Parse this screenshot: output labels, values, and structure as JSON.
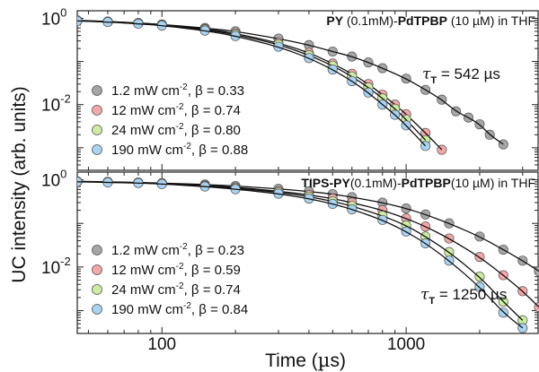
{
  "chart_data": [
    {
      "type": "scatter",
      "panel": "top",
      "title_parts": [
        {
          "text": "PY",
          "bold": true
        },
        {
          "text": " (0.1mM)-",
          "bold": false
        },
        {
          "text": "PdTPBP",
          "bold": true
        },
        {
          "text": " (10 µM) in THF",
          "bold": false
        }
      ],
      "tau_label": {
        "symbol": "τ",
        "sub": "T",
        "text": " = 542 µs"
      },
      "x_scale": "log",
      "y_scale": "log",
      "xlim": [
        45,
        3500
      ],
      "ylim": [
        0.0003,
        1.5
      ],
      "y_tick_labels": [
        {
          "value": 1,
          "base": "10",
          "exp": "0"
        },
        {
          "value": 0.01,
          "base": "10",
          "exp": "-2"
        }
      ],
      "series": [
        {
          "label_power": "1.2 mW cm",
          "label_sup": "-2",
          "label_beta": ",  β = 0.33",
          "beta": 0.33,
          "color": "#a6a6a6",
          "points": [
            [
              45,
              0.9
            ],
            [
              60,
              0.85
            ],
            [
              80,
              0.78
            ],
            [
              100,
              0.72
            ],
            [
              150,
              0.6
            ],
            [
              200,
              0.5
            ],
            [
              300,
              0.34
            ],
            [
              400,
              0.24
            ],
            [
              500,
              0.17
            ],
            [
              600,
              0.13
            ],
            [
              700,
              0.095
            ],
            [
              800,
              0.07
            ],
            [
              1000,
              0.04
            ],
            [
              1200,
              0.022
            ],
            [
              1400,
              0.013
            ],
            [
              1600,
              0.007
            ],
            [
              1800,
              0.005
            ],
            [
              2000,
              0.0035
            ],
            [
              2200,
              0.002
            ],
            [
              2500,
              0.0012
            ]
          ]
        },
        {
          "label_power": "12 mW cm",
          "label_sup": "-2",
          "label_beta": ",  β = 0.74",
          "beta": 0.74,
          "color": "#f4a8a8",
          "points": [
            [
              45,
              0.88
            ],
            [
              60,
              0.84
            ],
            [
              80,
              0.78
            ],
            [
              100,
              0.72
            ],
            [
              150,
              0.57
            ],
            [
              200,
              0.45
            ],
            [
              300,
              0.27
            ],
            [
              400,
              0.16
            ],
            [
              500,
              0.09
            ],
            [
              600,
              0.052
            ],
            [
              700,
              0.03
            ],
            [
              800,
              0.017
            ],
            [
              900,
              0.01
            ],
            [
              1000,
              0.006
            ],
            [
              1200,
              0.0022
            ],
            [
              1400,
              0.0009
            ]
          ]
        },
        {
          "label_power": "24 mW cm",
          "label_sup": "-2",
          "label_beta": ",  β = 0.80",
          "beta": 0.8,
          "color": "#cdeea0",
          "points": [
            [
              45,
              0.88
            ],
            [
              60,
              0.83
            ],
            [
              80,
              0.76
            ],
            [
              100,
              0.7
            ],
            [
              150,
              0.55
            ],
            [
              200,
              0.42
            ],
            [
              300,
              0.25
            ],
            [
              400,
              0.14
            ],
            [
              500,
              0.08
            ],
            [
              600,
              0.045
            ],
            [
              700,
              0.025
            ],
            [
              800,
              0.014
            ],
            [
              900,
              0.008
            ],
            [
              1000,
              0.0045
            ],
            [
              1200,
              0.0015
            ]
          ]
        },
        {
          "label_power": "190 mW cm",
          "label_sup": "-2",
          "label_beta": ", β = 0.88",
          "beta": 0.88,
          "color": "#a8d4f2",
          "points": [
            [
              45,
              0.87
            ],
            [
              60,
              0.82
            ],
            [
              80,
              0.75
            ],
            [
              100,
              0.68
            ],
            [
              150,
              0.52
            ],
            [
              200,
              0.39
            ],
            [
              300,
              0.22
            ],
            [
              400,
              0.12
            ],
            [
              500,
              0.065
            ],
            [
              600,
              0.035
            ],
            [
              700,
              0.019
            ],
            [
              800,
              0.01
            ],
            [
              900,
              0.0058
            ],
            [
              1000,
              0.0033
            ],
            [
              1200,
              0.0011
            ]
          ]
        }
      ]
    },
    {
      "type": "scatter",
      "panel": "bottom",
      "title_parts": [
        {
          "text": "TIPS-PY",
          "bold": true
        },
        {
          "text": "(0.1mM)-",
          "bold": false
        },
        {
          "text": "PdTPBP",
          "bold": true
        },
        {
          "text": "(10 µM) in THF",
          "bold": false
        }
      ],
      "tau_label": {
        "symbol": "τ",
        "sub": "T",
        "text": " = 1250 µs"
      },
      "x_scale": "log",
      "y_scale": "log",
      "xlim": [
        45,
        3500
      ],
      "ylim": [
        0.0003,
        1.5
      ],
      "y_tick_labels": [
        {
          "value": 1,
          "base": "10",
          "exp": "0"
        },
        {
          "value": 0.01,
          "base": "10",
          "exp": "-2"
        }
      ],
      "series": [
        {
          "label_power": "1.2 mW cm",
          "label_sup": "-2",
          "label_beta": ",  β = 0.23",
          "beta": 0.23,
          "color": "#a6a6a6",
          "points": [
            [
              45,
              0.92
            ],
            [
              60,
              0.9
            ],
            [
              80,
              0.87
            ],
            [
              100,
              0.84
            ],
            [
              150,
              0.78
            ],
            [
              200,
              0.72
            ],
            [
              300,
              0.62
            ],
            [
              400,
              0.54
            ],
            [
              500,
              0.47
            ],
            [
              600,
              0.4
            ],
            [
              800,
              0.3
            ],
            [
              1000,
              0.22
            ],
            [
              1200,
              0.16
            ],
            [
              1500,
              0.1
            ],
            [
              2000,
              0.05
            ],
            [
              2500,
              0.025
            ],
            [
              3000,
              0.014
            ],
            [
              3500,
              0.008
            ]
          ]
        },
        {
          "label_power": "12 mW  cm",
          "label_sup": "-2",
          "label_beta": ",  β = 0.59",
          "beta": 0.59,
          "color": "#f4a8a8",
          "points": [
            [
              45,
              0.91
            ],
            [
              60,
              0.89
            ],
            [
              80,
              0.86
            ],
            [
              100,
              0.82
            ],
            [
              150,
              0.74
            ],
            [
              200,
              0.67
            ],
            [
              300,
              0.55
            ],
            [
              400,
              0.45
            ],
            [
              500,
              0.37
            ],
            [
              600,
              0.3
            ],
            [
              800,
              0.2
            ],
            [
              1000,
              0.13
            ],
            [
              1200,
              0.085
            ],
            [
              1500,
              0.045
            ],
            [
              2000,
              0.017
            ],
            [
              2500,
              0.0065
            ],
            [
              3000,
              0.0028
            ],
            [
              3500,
              0.0012
            ]
          ]
        },
        {
          "label_power": "24 mW  cm",
          "label_sup": "-2",
          "label_beta": ",  β = 0.74",
          "beta": 0.74,
          "color": "#cdeea0",
          "points": [
            [
              45,
              0.9
            ],
            [
              60,
              0.88
            ],
            [
              80,
              0.85
            ],
            [
              100,
              0.81
            ],
            [
              150,
              0.72
            ],
            [
              200,
              0.64
            ],
            [
              300,
              0.52
            ],
            [
              400,
              0.41
            ],
            [
              500,
              0.32
            ],
            [
              600,
              0.25
            ],
            [
              800,
              0.15
            ],
            [
              1000,
              0.09
            ],
            [
              1200,
              0.05
            ],
            [
              1500,
              0.022
            ],
            [
              2000,
              0.006
            ],
            [
              2500,
              0.0016
            ],
            [
              3000,
              0.0006
            ]
          ]
        },
        {
          "label_power": "190 mW cm",
          "label_sup": "-2",
          "label_beta": ", β = 0.84",
          "beta": 0.84,
          "color": "#a8d4f2",
          "points": [
            [
              45,
              0.9
            ],
            [
              60,
              0.87
            ],
            [
              80,
              0.84
            ],
            [
              100,
              0.8
            ],
            [
              150,
              0.7
            ],
            [
              200,
              0.61
            ],
            [
              300,
              0.48
            ],
            [
              400,
              0.37
            ],
            [
              500,
              0.28
            ],
            [
              600,
              0.21
            ],
            [
              800,
              0.12
            ],
            [
              1000,
              0.065
            ],
            [
              1200,
              0.035
            ],
            [
              1500,
              0.014
            ],
            [
              2000,
              0.0035
            ],
            [
              2500,
              0.0009
            ],
            [
              3000,
              0.0004
            ]
          ]
        }
      ]
    }
  ],
  "x_ticks": [
    {
      "value": 100,
      "label": "100"
    },
    {
      "value": 1000,
      "label": "1000"
    }
  ],
  "x_axis_title": {
    "text": "Time (",
    "mu": "µ",
    "rest": "s)"
  },
  "y_axis_title": "UC intensity (arb. units)",
  "fit_color": "#111111"
}
